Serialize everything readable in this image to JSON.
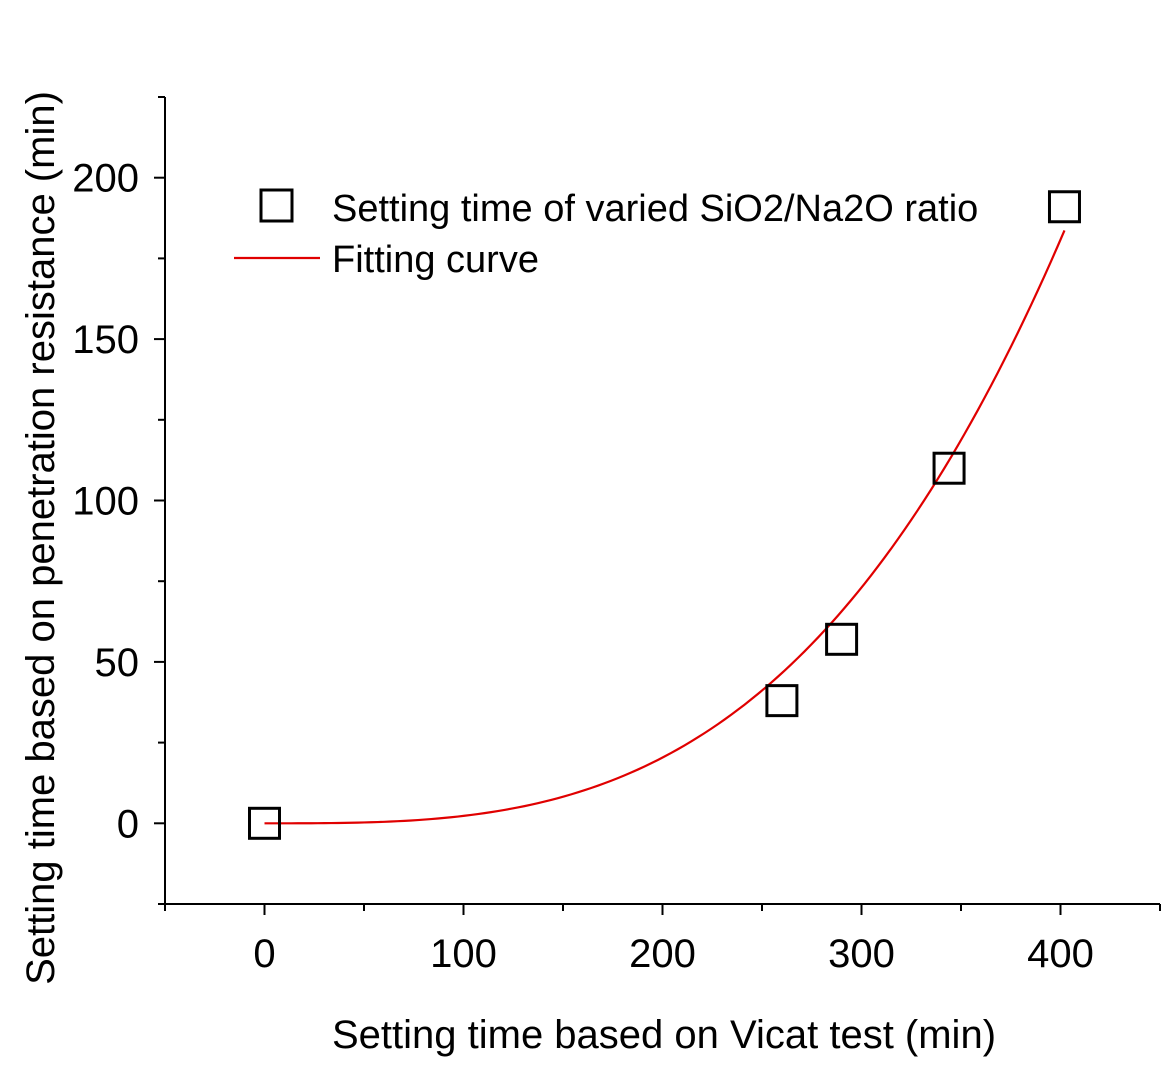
{
  "chart_data": {
    "type": "scatter",
    "xlabel": "Setting time based on Vicat test (min)",
    "ylabel": "Setting time based on penetration resistance (min)",
    "xlim": [
      -50,
      450
    ],
    "ylim": [
      -25,
      225
    ],
    "x_ticks": [
      0,
      100,
      200,
      300,
      400
    ],
    "x_tick_labels": [
      "0",
      "100",
      "200",
      "300",
      "400"
    ],
    "x_minor_ticks": [
      -50,
      50,
      150,
      250,
      350,
      450
    ],
    "y_ticks": [
      0,
      50,
      100,
      150,
      200
    ],
    "y_tick_labels": [
      "0",
      "50",
      "100",
      "150",
      "200"
    ],
    "y_minor_ticks": [
      -25,
      25,
      75,
      125,
      175,
      225
    ],
    "legend_position": "top-left",
    "series": [
      {
        "name": "Setting time of varied SiO2/Na2O ratio",
        "kind": "scatter",
        "marker": "open-square",
        "color": "#000000",
        "points": [
          {
            "x": 0,
            "y": 0
          },
          {
            "x": 260,
            "y": 38
          },
          {
            "x": 290,
            "y": 57
          },
          {
            "x": 344,
            "y": 110
          },
          {
            "x": 402,
            "y": 191
          }
        ]
      },
      {
        "name": "Fitting curve",
        "kind": "line",
        "color": "#e00000",
        "model": "power",
        "coefficient": 1.15e-06,
        "exponent": 3.15,
        "x_range": [
          0,
          402
        ]
      }
    ]
  }
}
